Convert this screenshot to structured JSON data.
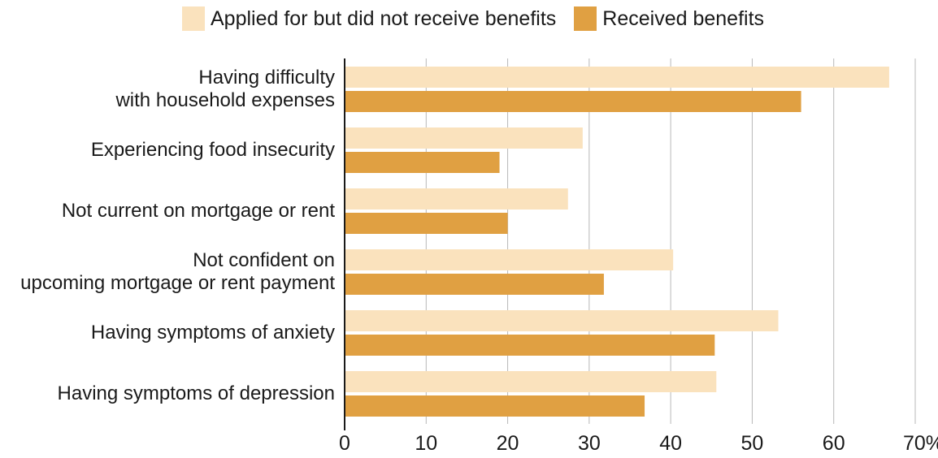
{
  "chart_data": {
    "type": "bar",
    "orientation": "horizontal",
    "title": "",
    "xlabel": "",
    "ylabel": "",
    "categories": [
      [
        "Having difficulty",
        "with household expenses"
      ],
      [
        "Experiencing food insecurity"
      ],
      [
        "Not current on mortgage or rent"
      ],
      [
        "Not confident on",
        "upcoming mortgage or rent payment"
      ],
      [
        "Having symptoms of anxiety"
      ],
      [
        "Having symptoms of depression"
      ]
    ],
    "series": [
      {
        "name": "Applied for but did not receive benefits",
        "color": "#fae2bd",
        "values": [
          66.8,
          29.2,
          27.4,
          40.3,
          53.2,
          45.6
        ]
      },
      {
        "name": "Received benefits",
        "color": "#e0a042",
        "values": [
          56.0,
          19.0,
          20.0,
          31.8,
          45.4,
          36.8
        ]
      }
    ],
    "xlim": [
      0,
      70
    ],
    "xticks": [
      "0",
      "10",
      "20",
      "30",
      "40",
      "50",
      "60",
      "70%"
    ],
    "grid": true,
    "legend": "top"
  }
}
